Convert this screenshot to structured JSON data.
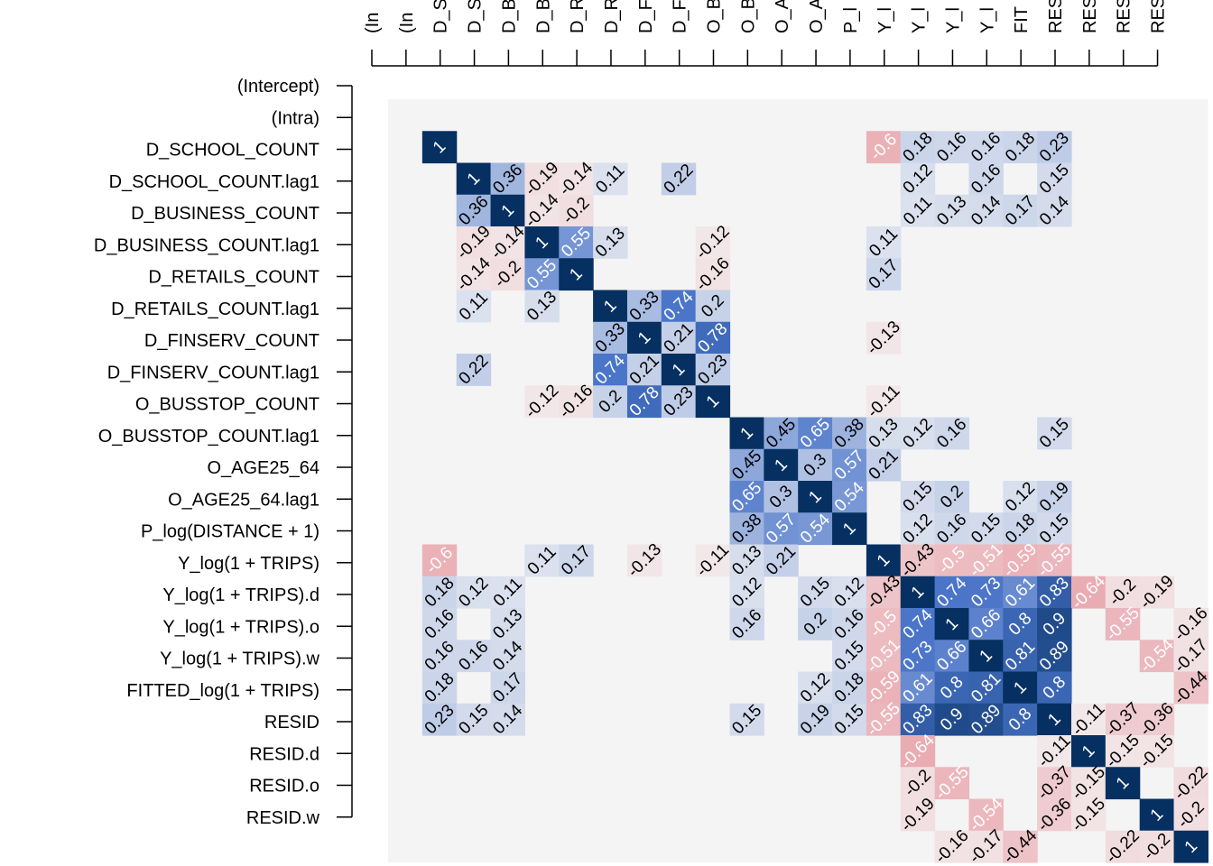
{
  "chart_data": {
    "type": "heatmap",
    "variables": [
      "(Intercept)",
      "(Intra)",
      "D_SCHOOL_COUNT",
      "D_SCHOOL_COUNT.lag1",
      "D_BUSINESS_COUNT",
      "D_BUSINESS_COUNT.lag1",
      "D_RETAILS_COUNT",
      "D_RETAILS_COUNT.lag1",
      "D_FINSERV_COUNT",
      "D_FINSERV_COUNT.lag1",
      "O_BUSSTOP_COUNT",
      "O_BUSSTOP_COUNT.lag1",
      "O_AGE25_64",
      "O_AGE25_64.lag1",
      "P_log(DISTANCE + 1)",
      "Y_log(1 + TRIPS)",
      "Y_log(1 + TRIPS).d",
      "Y_log(1 + TRIPS).o",
      "Y_log(1 + TRIPS).w",
      "FITTED_log(1 + TRIPS)",
      "RESID",
      "RESID.d",
      "RESID.o",
      "RESID.w"
    ],
    "top_labels": [
      "(In",
      "(In",
      "D_S",
      "D_S",
      "D_B",
      "D_B",
      "D_R",
      "D_R",
      "D_F",
      "D_F",
      "O_B",
      "O_B",
      "O_A",
      "O_A",
      "P_l",
      "Y_l",
      "Y_l",
      "Y_l",
      "Y_l",
      "FIT",
      "RES",
      "RES",
      "RES",
      "RES"
    ],
    "label_threshold": 0.1,
    "shown_cells": [
      [
        1,
        1,
        "1"
      ],
      [
        1,
        14,
        "-0.6"
      ],
      [
        1,
        15,
        "0.18"
      ],
      [
        1,
        16,
        "0.16"
      ],
      [
        1,
        17,
        "0.16"
      ],
      [
        1,
        18,
        "0.18"
      ],
      [
        1,
        19,
        "0.23"
      ],
      [
        2,
        2,
        "1"
      ],
      [
        2,
        3,
        "0.36"
      ],
      [
        2,
        4,
        "-0.19"
      ],
      [
        2,
        5,
        "-0.14"
      ],
      [
        2,
        6,
        "0.11"
      ],
      [
        2,
        8,
        "0.22"
      ],
      [
        2,
        15,
        "0.12"
      ],
      [
        2,
        17,
        "0.16"
      ],
      [
        2,
        19,
        "0.15"
      ],
      [
        3,
        3,
        "1"
      ],
      [
        3,
        4,
        "-0.14"
      ],
      [
        3,
        5,
        "-0.2"
      ],
      [
        3,
        15,
        "0.11"
      ],
      [
        3,
        16,
        "0.13"
      ],
      [
        3,
        17,
        "0.14"
      ],
      [
        3,
        18,
        "0.17"
      ],
      [
        3,
        19,
        "0.14"
      ],
      [
        4,
        4,
        "1"
      ],
      [
        4,
        5,
        "0.55"
      ],
      [
        4,
        6,
        "0.13"
      ],
      [
        4,
        9,
        "-0.12"
      ],
      [
        4,
        14,
        "0.11"
      ],
      [
        5,
        5,
        "1"
      ],
      [
        5,
        9,
        "-0.16"
      ],
      [
        5,
        14,
        "0.17"
      ],
      [
        6,
        6,
        "1"
      ],
      [
        6,
        7,
        "0.33"
      ],
      [
        6,
        8,
        "0.74"
      ],
      [
        6,
        9,
        "0.2"
      ],
      [
        7,
        7,
        "1"
      ],
      [
        7,
        8,
        "0.21"
      ],
      [
        7,
        9,
        "0.78"
      ],
      [
        7,
        14,
        "-0.13"
      ],
      [
        8,
        8,
        "1"
      ],
      [
        8,
        9,
        "0.23"
      ],
      [
        9,
        9,
        "1"
      ],
      [
        9,
        14,
        "-0.11"
      ],
      [
        10,
        10,
        "1"
      ],
      [
        10,
        11,
        "0.45"
      ],
      [
        10,
        12,
        "0.65"
      ],
      [
        10,
        13,
        "0.38"
      ],
      [
        10,
        14,
        "0.13"
      ],
      [
        10,
        15,
        "0.12"
      ],
      [
        10,
        16,
        "0.16"
      ],
      [
        10,
        19,
        "0.15"
      ],
      [
        11,
        11,
        "1"
      ],
      [
        11,
        12,
        "0.3"
      ],
      [
        11,
        13,
        "0.57"
      ],
      [
        11,
        14,
        "0.21"
      ],
      [
        12,
        12,
        "1"
      ],
      [
        12,
        13,
        "0.54"
      ],
      [
        12,
        15,
        "0.15"
      ],
      [
        12,
        16,
        "0.2"
      ],
      [
        12,
        18,
        "0.12"
      ],
      [
        12,
        19,
        "0.19"
      ],
      [
        13,
        13,
        "1"
      ],
      [
        13,
        15,
        "0.12"
      ],
      [
        13,
        16,
        "0.16"
      ],
      [
        13,
        17,
        "0.15"
      ],
      [
        13,
        18,
        "0.18"
      ],
      [
        13,
        19,
        "0.15"
      ],
      [
        14,
        14,
        "1"
      ],
      [
        14,
        15,
        "-0.43"
      ],
      [
        14,
        16,
        "-0.5"
      ],
      [
        14,
        17,
        "-0.51"
      ],
      [
        14,
        18,
        "-0.59"
      ],
      [
        14,
        19,
        "-0.55"
      ],
      [
        15,
        15,
        "1"
      ],
      [
        15,
        16,
        "0.74"
      ],
      [
        15,
        17,
        "0.73"
      ],
      [
        15,
        18,
        "0.61"
      ],
      [
        15,
        19,
        "0.83"
      ],
      [
        15,
        20,
        "-0.64"
      ],
      [
        15,
        21,
        "-0.2"
      ],
      [
        15,
        22,
        "-0.19"
      ],
      [
        16,
        16,
        "1"
      ],
      [
        16,
        17,
        "0.66"
      ],
      [
        16,
        18,
        "0.8"
      ],
      [
        16,
        19,
        "0.9"
      ],
      [
        16,
        21,
        "-0.55"
      ],
      [
        16,
        23,
        "-0.16"
      ],
      [
        17,
        17,
        "1"
      ],
      [
        17,
        18,
        "0.81"
      ],
      [
        17,
        19,
        "0.89"
      ],
      [
        17,
        22,
        "-0.54"
      ],
      [
        17,
        23,
        "-0.17"
      ],
      [
        18,
        18,
        "1"
      ],
      [
        18,
        19,
        "0.8"
      ],
      [
        18,
        23,
        "-0.44"
      ],
      [
        19,
        19,
        "1"
      ],
      [
        19,
        20,
        "-0.11"
      ],
      [
        19,
        21,
        "-0.37"
      ],
      [
        19,
        22,
        "-0.36"
      ],
      [
        20,
        20,
        "1"
      ],
      [
        20,
        21,
        "-0.15"
      ],
      [
        20,
        22,
        "-0.15"
      ],
      [
        21,
        21,
        "1"
      ],
      [
        21,
        23,
        "-0.22"
      ],
      [
        22,
        22,
        "1"
      ],
      [
        22,
        23,
        "-0.2"
      ],
      [
        23,
        23,
        "1"
      ]
    ],
    "color_scale": {
      "negative": "#B2182B",
      "zero": "#F4F4F4",
      "positive": "#053061",
      "mid_negative": "#E8A0A8",
      "mid_positive": "#4873C8"
    },
    "grid": false,
    "legend": "none"
  }
}
